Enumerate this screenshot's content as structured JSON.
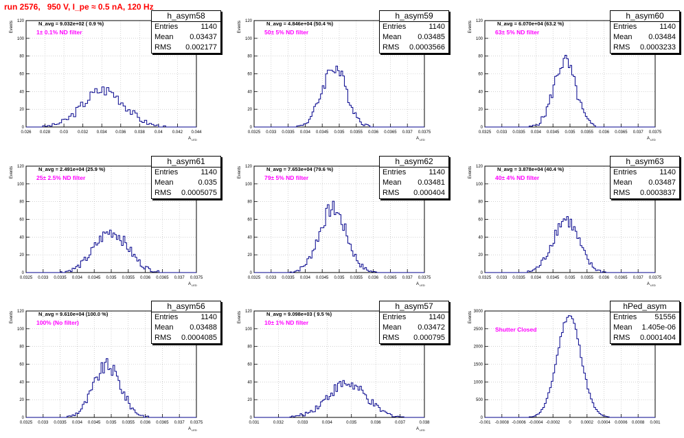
{
  "title": "run 2576,   950 V, I_pe ≈ 0.5 nA, 120 Hz",
  "colors": {
    "title": "#ff0000",
    "hist": "#00008b",
    "annotation": "#ff00ff",
    "grid": "#b4b4b4"
  },
  "chart_data": [
    {
      "type": "histogram",
      "name": "h_asym58",
      "entries": "1140",
      "mean": "0.03437",
      "rms": "0.002177",
      "navg_text": "N_avg = 9.032e+02 ( 0.9 %)",
      "filter_text": "1± 0.1% ND filter",
      "ylabel": "Events",
      "xlabel": "A",
      "xlabel_sub": "LED",
      "xlim": [
        0.026,
        0.044
      ],
      "ylim": [
        0,
        120
      ],
      "xticks": [
        "0.026",
        "0.028",
        "0.03",
        "0.032",
        "0.034",
        "0.036",
        "0.038",
        "0.04",
        "0.042",
        "0.044"
      ],
      "yticks": [
        "0",
        "20",
        "40",
        "60",
        "80",
        "100",
        "120"
      ],
      "peak": [
        0.0342,
        42
      ],
      "sigma": 0.0022,
      "peak_to_bin": {
        "bins": 72
      }
    },
    {
      "type": "histogram",
      "name": "h_asym59",
      "entries": "1140",
      "mean": "0.03485",
      "rms": "0.0003566",
      "navg_text": "N_avg = 4.846e+04 (50.4 %)",
      "filter_text": "50± 5% ND filter",
      "ylabel": "Events",
      "xlabel": "A",
      "xlabel_sub": "LED",
      "xlim": [
        0.0325,
        0.0375
      ],
      "ylim": [
        0,
        120
      ],
      "xticks": [
        "0.0325",
        "0.033",
        "0.0335",
        "0.034",
        "0.0345",
        "0.035",
        "0.0355",
        "0.036",
        "0.0365",
        "0.037",
        "0.0375"
      ],
      "yticks": [
        "0",
        "20",
        "40",
        "60",
        "80",
        "100",
        "120"
      ],
      "peak": [
        0.03485,
        68
      ],
      "sigma": 0.00036,
      "peak_to_bin": {
        "bins": 100
      }
    },
    {
      "type": "histogram",
      "name": "h_asym60",
      "entries": "1140",
      "mean": "0.03484",
      "rms": "0.0003233",
      "navg_text": "N_avg = 6.070e+04 (63.2 %)",
      "filter_text": "63± 5% ND filter",
      "ylabel": "Events",
      "xlabel": "A",
      "xlabel_sub": "LED",
      "xlim": [
        0.0325,
        0.0375
      ],
      "ylim": [
        0,
        120
      ],
      "xticks": [
        "0.0325",
        "0.033",
        "0.0335",
        "0.034",
        "0.0345",
        "0.035",
        "0.0355",
        "0.036",
        "0.0365",
        "0.037",
        "0.0375"
      ],
      "yticks": [
        "0",
        "20",
        "40",
        "60",
        "80",
        "100",
        "120"
      ],
      "peak": [
        0.03484,
        74
      ],
      "sigma": 0.00032,
      "peak_to_bin": {
        "bins": 100
      }
    },
    {
      "type": "histogram",
      "name": "h_asym61",
      "entries": "1140",
      "mean": "0.035",
      "rms": "0.0005075",
      "navg_text": "N_avg = 2.491e+04 (25.9 %)",
      "filter_text": "25± 2.5% ND filter",
      "ylabel": "Events",
      "xlabel": "A",
      "xlabel_sub": "LED",
      "xlim": [
        0.0325,
        0.0375
      ],
      "ylim": [
        0,
        120
      ],
      "xticks": [
        "0.0325",
        "0.033",
        "0.0335",
        "0.034",
        "0.0345",
        "0.035",
        "0.0355",
        "0.036",
        "0.0365",
        "0.037",
        "0.0375"
      ],
      "yticks": [
        "0",
        "20",
        "40",
        "60",
        "80",
        "100",
        "120"
      ],
      "peak": [
        0.035,
        46
      ],
      "sigma": 0.0005,
      "peak_to_bin": {
        "bins": 100
      }
    },
    {
      "type": "histogram",
      "name": "h_asym62",
      "entries": "1140",
      "mean": "0.03481",
      "rms": "0.000404",
      "navg_text": "N_avg = 7.653e+04 (79.6 %)",
      "filter_text": "79± 5% ND filter",
      "ylabel": "Events",
      "xlabel": "A",
      "xlabel_sub": "LED",
      "xlim": [
        0.0325,
        0.0375
      ],
      "ylim": [
        0,
        120
      ],
      "xticks": [
        "0.0325",
        "0.033",
        "0.0335",
        "0.034",
        "0.0345",
        "0.035",
        "0.0355",
        "0.036",
        "0.0365",
        "0.037",
        "0.0375"
      ],
      "yticks": [
        "0",
        "20",
        "40",
        "60",
        "80",
        "100",
        "120"
      ],
      "peak": [
        0.03481,
        72
      ],
      "sigma": 0.0004,
      "peak_to_bin": {
        "bins": 100
      }
    },
    {
      "type": "histogram",
      "name": "h_asym63",
      "entries": "1140",
      "mean": "0.03487",
      "rms": "0.0003837",
      "navg_text": "N_avg = 3.878e+04 (40.4 %)",
      "filter_text": "40± 4% ND filter",
      "ylabel": "Events",
      "xlabel": "A",
      "xlabel_sub": "LED",
      "xlim": [
        0.0325,
        0.0375
      ],
      "ylim": [
        0,
        120
      ],
      "xticks": [
        "0.0325",
        "0.033",
        "0.0335",
        "0.034",
        "0.0345",
        "0.035",
        "0.0355",
        "0.036",
        "0.0365",
        "0.037",
        "0.0375"
      ],
      "yticks": [
        "0",
        "20",
        "40",
        "60",
        "80",
        "100",
        "120"
      ],
      "peak": [
        0.03487,
        60
      ],
      "sigma": 0.00038,
      "peak_to_bin": {
        "bins": 100
      }
    },
    {
      "type": "histogram",
      "name": "h_asym56",
      "entries": "1140",
      "mean": "0.03488",
      "rms": "0.0004085",
      "navg_text": "N_avg = 9.610e+04 (100.0 %)",
      "filter_text": "100% (No filter)",
      "ylabel": "Events",
      "xlabel": "A",
      "xlabel_sub": "LED",
      "xlim": [
        0.0325,
        0.0375
      ],
      "ylim": [
        0,
        120
      ],
      "xticks": [
        "0.0325",
        "0.033",
        "0.0335",
        "0.034",
        "0.0345",
        "0.035",
        "0.0355",
        "0.036",
        "0.0365",
        "0.037",
        "0.0375"
      ],
      "yticks": [
        "0",
        "20",
        "40",
        "60",
        "80",
        "100",
        "120"
      ],
      "peak": [
        0.03488,
        58
      ],
      "sigma": 0.0004,
      "peak_to_bin": {
        "bins": 100
      }
    },
    {
      "type": "histogram",
      "name": "h_asym57",
      "entries": "1140",
      "mean": "0.03472",
      "rms": "0.000795",
      "navg_text": "N_avg = 9.098e+03 ( 9.5 %)",
      "filter_text": "10± 1% ND filter",
      "ylabel": "Events",
      "xlabel": "A",
      "xlabel_sub": "LED",
      "xlim": [
        0.031,
        0.038
      ],
      "ylim": [
        0,
        120
      ],
      "xticks": [
        "0.031",
        "0.032",
        "0.033",
        "0.034",
        "0.035",
        "0.036",
        "0.037",
        "0.038"
      ],
      "yticks": [
        "0",
        "20",
        "40",
        "60",
        "80",
        "100",
        "120"
      ],
      "peak": [
        0.0348,
        38
      ],
      "sigma": 0.0008,
      "peak_to_bin": {
        "bins": 100
      }
    },
    {
      "type": "histogram",
      "name": "hPed_asym",
      "entries": "51556",
      "mean": "1.405e-06",
      "rms": "0.0001404",
      "navg_text": "",
      "filter_text": "Shutter Closed",
      "ylabel": "Events",
      "xlabel": "",
      "xlabel_sub": "",
      "xlim": [
        -0.001,
        0.001
      ],
      "ylim": [
        0,
        3000
      ],
      "xticks": [
        "-0.001",
        "-0.0008",
        "-0.0006",
        "-0.0004",
        "-0.0002",
        "0",
        "0.0002",
        "0.0004",
        "0.0006",
        "0.0008",
        "0.001"
      ],
      "yticks": [
        "0",
        "500",
        "1000",
        "1500",
        "2000",
        "2500",
        "3000"
      ],
      "peak": [
        -1e-05,
        2880
      ],
      "sigma": 0.00014,
      "peak_to_bin": {
        "bins": 100
      }
    }
  ],
  "stat_labels": {
    "entries": "Entries",
    "mean": "Mean",
    "rms": "RMS"
  }
}
